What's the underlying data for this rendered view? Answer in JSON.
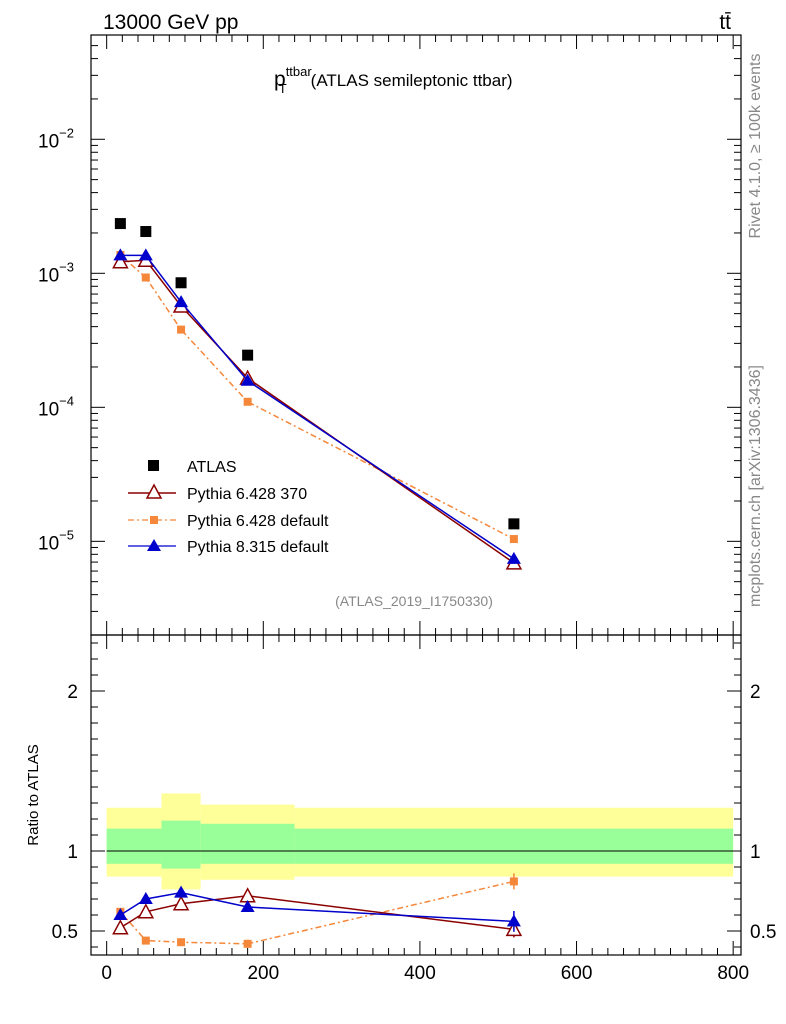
{
  "header": {
    "left": "13000 GeV pp",
    "right": "tt̄"
  },
  "side_text": {
    "rivet": "Rivet 4.1.0, ≥ 100k events",
    "mcplots": "mcplots.cern.ch [arXiv:1306.3436]"
  },
  "chart_data": [
    {
      "type": "scatter",
      "panel": "main",
      "title_main": "p",
      "title_sup": "ttbar",
      "title_sub": "T",
      "title_rest": "(ATLAS semileptonic ttbar)",
      "watermark": "(ATLAS_2019_I1750330)",
      "yscale": "log",
      "ylim": [
        2e-06,
        0.06
      ],
      "xlim": [
        -20,
        810
      ],
      "ytick_labels": [
        {
          "base": "10",
          "exp": "−2",
          "value": 0.01
        },
        {
          "base": "10",
          "exp": "−3",
          "value": 0.001
        },
        {
          "base": "10",
          "exp": "−4",
          "value": 0.0001
        },
        {
          "base": "10",
          "exp": "−5",
          "value": 1e-05
        }
      ],
      "x": [
        17.5,
        50,
        95,
        180,
        520
      ],
      "series": [
        {
          "name": "ATLAS",
          "marker": "square",
          "color": "#000000",
          "values": [
            0.00235,
            0.00205,
            0.00085,
            0.000245,
            1.35e-05
          ]
        },
        {
          "name": "Pythia 6.428 370",
          "marker": "open-triangle",
          "color": "#8b0000",
          "values": [
            0.00122,
            0.00125,
            0.00057,
            0.000165,
            6.9e-06
          ]
        },
        {
          "name": "Pythia 6.428 default",
          "marker": "small-square",
          "color": "#f5873a",
          "values": [
            0.00137,
            0.00093,
            0.00038,
            0.00011,
            1.04e-05
          ]
        },
        {
          "name": "Pythia 8.315 default",
          "marker": "filled-triangle",
          "color": "#0000cc",
          "values": [
            0.00136,
            0.00136,
            0.00061,
            0.000158,
            7.4e-06
          ]
        }
      ],
      "legend_position": "lower-left"
    },
    {
      "type": "line",
      "panel": "ratio",
      "ylabel": "Ratio to ATLAS",
      "ylim": [
        0.35,
        2.35
      ],
      "xlim": [
        -20,
        810
      ],
      "yticks": [
        0.5,
        1,
        2
      ],
      "ytick_labels": [
        "0.5",
        "1",
        "2"
      ],
      "xticks": [
        0,
        200,
        400,
        600,
        800
      ],
      "xtick_labels": [
        "0",
        "200",
        "400",
        "600",
        "800"
      ],
      "reference_line": 1,
      "bands": [
        {
          "x_from": 0,
          "x_to": 70,
          "yellow": [
            0.84,
            1.27
          ],
          "green": [
            0.92,
            1.14
          ]
        },
        {
          "x_from": 70,
          "x_to": 120,
          "yellow": [
            0.76,
            1.36
          ],
          "green": [
            0.89,
            1.19
          ]
        },
        {
          "x_from": 120,
          "x_to": 240,
          "yellow": [
            0.82,
            1.29
          ],
          "green": [
            0.92,
            1.17
          ]
        },
        {
          "x_from": 240,
          "x_to": 800,
          "yellow": [
            0.84,
            1.27
          ],
          "green": [
            0.92,
            1.14
          ]
        }
      ],
      "x": [
        17.5,
        50,
        95,
        180,
        520
      ],
      "series": [
        {
          "name": "Pythia 6.428 370",
          "marker": "open-triangle",
          "color": "#8b0000",
          "values": [
            0.52,
            0.62,
            0.67,
            0.72,
            0.51
          ],
          "errors": [
            0.01,
            0.015,
            0.015,
            0.025,
            0.05
          ]
        },
        {
          "name": "Pythia 6.428 default",
          "marker": "small-square",
          "color": "#f5873a",
          "values": [
            0.62,
            0.44,
            0.43,
            0.42,
            0.81
          ],
          "errors": [
            0.01,
            0.015,
            0.02,
            0.025,
            0.05
          ]
        },
        {
          "name": "Pythia 8.315 default",
          "marker": "filled-triangle",
          "color": "#0000cc",
          "values": [
            0.6,
            0.7,
            0.74,
            0.65,
            0.56
          ],
          "errors": [
            0.01,
            0.015,
            0.02,
            0.025,
            0.065
          ]
        }
      ]
    }
  ]
}
